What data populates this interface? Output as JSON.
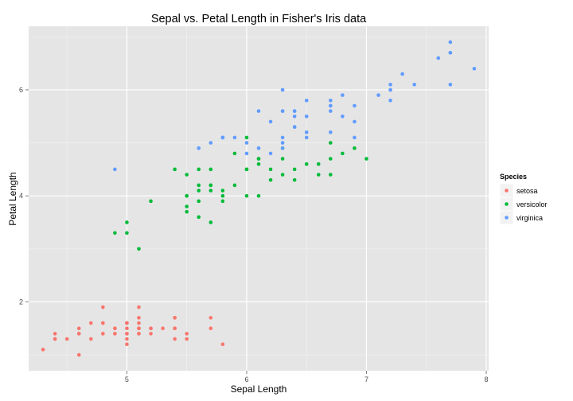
{
  "chart_data": {
    "type": "scatter",
    "title": "Sepal vs. Petal Length in Fisher's Iris data",
    "xlabel": "Sepal Length",
    "ylabel": "Petal Length",
    "xlim": [
      4.18,
      8.02
    ],
    "ylim": [
      0.7,
      7.2
    ],
    "xticks": [
      5,
      6,
      7,
      8
    ],
    "yticks": [
      2,
      4,
      6
    ],
    "grid": true,
    "legend": {
      "title": "Species",
      "position": "right"
    },
    "series": [
      {
        "name": "setosa",
        "color": "#F8766D",
        "points": [
          [
            5.1,
            1.4
          ],
          [
            4.9,
            1.4
          ],
          [
            4.7,
            1.3
          ],
          [
            4.6,
            1.5
          ],
          [
            5.0,
            1.4
          ],
          [
            5.4,
            1.7
          ],
          [
            4.6,
            1.4
          ],
          [
            5.0,
            1.5
          ],
          [
            4.4,
            1.4
          ],
          [
            4.9,
            1.5
          ],
          [
            5.4,
            1.5
          ],
          [
            4.8,
            1.6
          ],
          [
            4.8,
            1.4
          ],
          [
            4.3,
            1.1
          ],
          [
            5.8,
            1.2
          ],
          [
            5.7,
            1.5
          ],
          [
            5.4,
            1.3
          ],
          [
            5.1,
            1.4
          ],
          [
            5.7,
            1.7
          ],
          [
            5.1,
            1.5
          ],
          [
            5.4,
            1.7
          ],
          [
            5.1,
            1.5
          ],
          [
            4.6,
            1.0
          ],
          [
            5.1,
            1.7
          ],
          [
            4.8,
            1.9
          ],
          [
            5.0,
            1.6
          ],
          [
            5.0,
            1.6
          ],
          [
            5.2,
            1.5
          ],
          [
            5.2,
            1.4
          ],
          [
            4.7,
            1.6
          ],
          [
            4.8,
            1.6
          ],
          [
            5.4,
            1.5
          ],
          [
            5.2,
            1.5
          ],
          [
            5.5,
            1.4
          ],
          [
            4.9,
            1.5
          ],
          [
            5.0,
            1.2
          ],
          [
            5.5,
            1.3
          ],
          [
            4.9,
            1.4
          ],
          [
            4.4,
            1.3
          ],
          [
            5.1,
            1.5
          ],
          [
            5.0,
            1.3
          ],
          [
            4.5,
            1.3
          ],
          [
            4.4,
            1.3
          ],
          [
            5.0,
            1.6
          ],
          [
            5.1,
            1.9
          ],
          [
            4.8,
            1.4
          ],
          [
            5.1,
            1.6
          ],
          [
            4.6,
            1.4
          ],
          [
            5.3,
            1.5
          ],
          [
            5.0,
            1.4
          ]
        ]
      },
      {
        "name": "versicolor",
        "color": "#00BA38",
        "points": [
          [
            7.0,
            4.7
          ],
          [
            6.4,
            4.5
          ],
          [
            6.9,
            4.9
          ],
          [
            5.5,
            4.0
          ],
          [
            6.5,
            4.6
          ],
          [
            5.7,
            4.5
          ],
          [
            6.3,
            4.7
          ],
          [
            4.9,
            3.3
          ],
          [
            6.6,
            4.6
          ],
          [
            5.2,
            3.9
          ],
          [
            5.0,
            3.5
          ],
          [
            5.9,
            4.2
          ],
          [
            6.0,
            4.0
          ],
          [
            6.1,
            4.7
          ],
          [
            5.6,
            3.6
          ],
          [
            6.7,
            4.4
          ],
          [
            5.6,
            4.5
          ],
          [
            5.8,
            4.1
          ],
          [
            6.2,
            4.5
          ],
          [
            5.6,
            3.9
          ],
          [
            5.9,
            4.8
          ],
          [
            6.1,
            4.0
          ],
          [
            6.3,
            4.9
          ],
          [
            6.1,
            4.7
          ],
          [
            6.4,
            4.3
          ],
          [
            6.6,
            4.4
          ],
          [
            6.8,
            4.8
          ],
          [
            6.7,
            5.0
          ],
          [
            6.0,
            4.5
          ],
          [
            5.7,
            3.5
          ],
          [
            5.5,
            3.8
          ],
          [
            5.5,
            3.7
          ],
          [
            5.8,
            3.9
          ],
          [
            6.0,
            5.1
          ],
          [
            5.4,
            4.5
          ],
          [
            6.0,
            4.5
          ],
          [
            6.7,
            4.7
          ],
          [
            6.3,
            4.4
          ],
          [
            5.6,
            4.1
          ],
          [
            5.5,
            4.0
          ],
          [
            5.5,
            4.4
          ],
          [
            6.1,
            4.6
          ],
          [
            5.8,
            4.0
          ],
          [
            5.0,
            3.3
          ],
          [
            5.6,
            4.2
          ],
          [
            5.7,
            4.2
          ],
          [
            5.7,
            4.2
          ],
          [
            6.2,
            4.3
          ],
          [
            5.1,
            3.0
          ],
          [
            5.7,
            4.1
          ]
        ]
      },
      {
        "name": "virginica",
        "color": "#619CFF",
        "points": [
          [
            6.3,
            6.0
          ],
          [
            5.8,
            5.1
          ],
          [
            7.1,
            5.9
          ],
          [
            6.3,
            5.6
          ],
          [
            6.5,
            5.8
          ],
          [
            7.6,
            6.6
          ],
          [
            4.9,
            4.5
          ],
          [
            7.3,
            6.3
          ],
          [
            6.7,
            5.8
          ],
          [
            7.2,
            6.1
          ],
          [
            6.5,
            5.1
          ],
          [
            6.4,
            5.3
          ],
          [
            6.8,
            5.5
          ],
          [
            5.7,
            5.0
          ],
          [
            5.8,
            5.1
          ],
          [
            6.4,
            5.3
          ],
          [
            6.5,
            5.5
          ],
          [
            7.7,
            6.7
          ],
          [
            7.7,
            6.9
          ],
          [
            6.0,
            5.0
          ],
          [
            6.9,
            5.7
          ],
          [
            5.6,
            4.9
          ],
          [
            7.7,
            6.7
          ],
          [
            6.3,
            4.9
          ],
          [
            6.7,
            5.7
          ],
          [
            7.2,
            6.0
          ],
          [
            6.2,
            4.8
          ],
          [
            6.1,
            4.9
          ],
          [
            6.4,
            5.6
          ],
          [
            7.2,
            5.8
          ],
          [
            7.4,
            6.1
          ],
          [
            7.9,
            6.4
          ],
          [
            6.4,
            5.6
          ],
          [
            6.3,
            5.1
          ],
          [
            6.1,
            5.6
          ],
          [
            7.7,
            6.1
          ],
          [
            6.3,
            5.6
          ],
          [
            6.4,
            5.5
          ],
          [
            6.0,
            4.8
          ],
          [
            6.9,
            5.4
          ],
          [
            6.7,
            5.6
          ],
          [
            6.9,
            5.1
          ],
          [
            5.8,
            5.1
          ],
          [
            6.8,
            5.9
          ],
          [
            6.7,
            5.7
          ],
          [
            6.7,
            5.2
          ],
          [
            6.3,
            5.0
          ],
          [
            6.5,
            5.2
          ],
          [
            6.2,
            5.4
          ],
          [
            5.9,
            5.1
          ]
        ]
      }
    ]
  }
}
